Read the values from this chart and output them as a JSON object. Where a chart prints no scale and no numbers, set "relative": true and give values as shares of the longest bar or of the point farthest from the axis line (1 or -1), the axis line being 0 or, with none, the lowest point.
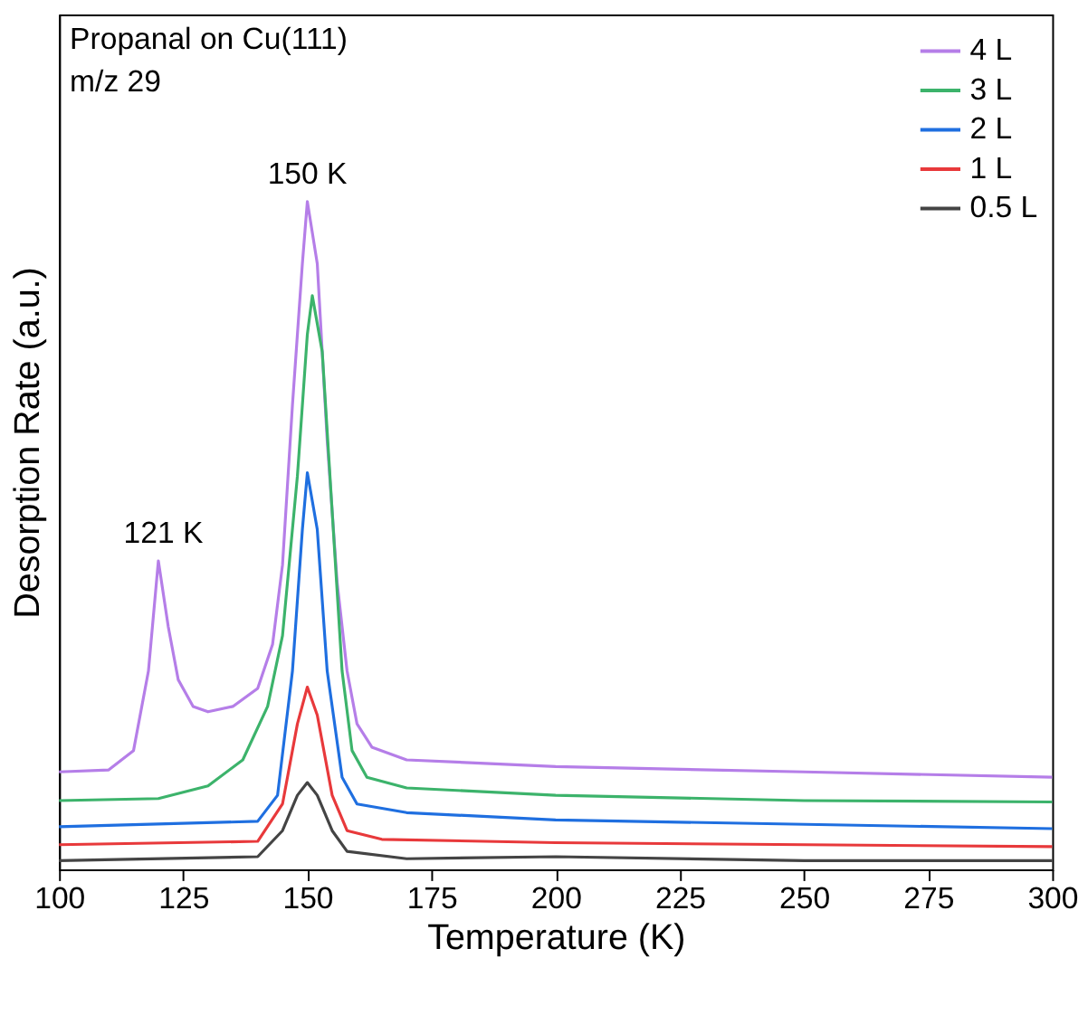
{
  "chart_data": {
    "type": "line",
    "xlabel": "Temperature (K)",
    "ylabel": "Desorption Rate (a.u.)",
    "relative": true,
    "tick_labels": "x",
    "legend": "top right",
    "grid": false,
    "line_style": "solid",
    "marker": "none",
    "xlim": [
      100,
      300
    ],
    "xticks": [
      100,
      125,
      150,
      175,
      200,
      225,
      250,
      275,
      300
    ],
    "annotations": [
      "Propanal on Cu(111)",
      "m/z 29",
      {
        "text": "121 K",
        "x": 121,
        "y": 0.462
      },
      {
        "text": "150 K",
        "x": 150,
        "y": 1.0
      }
    ],
    "series": [
      {
        "name": "4 L",
        "color": "#b57ee8",
        "x": [
          100,
          110,
          115,
          118,
          120,
          122,
          124,
          127,
          130,
          135,
          140,
          143,
          145,
          147,
          149,
          150,
          152,
          154,
          156,
          158,
          160,
          163,
          170,
          200,
          250,
          300
        ],
        "values": [
          0.146,
          0.149,
          0.178,
          0.297,
          0.462,
          0.363,
          0.284,
          0.244,
          0.236,
          0.244,
          0.271,
          0.337,
          0.456,
          0.695,
          0.907,
          1.0,
          0.907,
          0.642,
          0.43,
          0.297,
          0.218,
          0.183,
          0.164,
          0.154,
          0.146,
          0.138
        ]
      },
      {
        "name": "3 L",
        "color": "#3cb36b",
        "x": [
          100,
          120,
          130,
          137,
          142,
          145,
          148,
          150,
          151,
          153,
          155,
          157,
          159,
          162,
          170,
          200,
          250,
          300
        ],
        "values": [
          0.103,
          0.106,
          0.125,
          0.164,
          0.244,
          0.35,
          0.589,
          0.801,
          0.859,
          0.775,
          0.536,
          0.297,
          0.178,
          0.138,
          0.122,
          0.111,
          0.103,
          0.101
        ]
      },
      {
        "name": "2 L",
        "color": "#1f6fe0",
        "x": [
          100,
          140,
          144,
          147,
          149,
          150,
          152,
          154,
          157,
          160,
          170,
          200,
          300
        ],
        "values": [
          0.064,
          0.072,
          0.111,
          0.297,
          0.509,
          0.594,
          0.509,
          0.297,
          0.138,
          0.098,
          0.085,
          0.074,
          0.061
        ]
      },
      {
        "name": "1 L",
        "color": "#e8393b",
        "x": [
          100,
          140,
          145,
          148,
          150,
          152,
          155,
          158,
          165,
          200,
          300
        ],
        "values": [
          0.037,
          0.042,
          0.098,
          0.218,
          0.273,
          0.231,
          0.111,
          0.058,
          0.045,
          0.04,
          0.034
        ]
      },
      {
        "name": "0.5 L",
        "color": "#444444",
        "x": [
          100,
          140,
          145,
          148,
          150,
          152,
          155,
          158,
          170,
          200,
          250,
          300
        ],
        "values": [
          0.013,
          0.019,
          0.058,
          0.111,
          0.13,
          0.111,
          0.058,
          0.027,
          0.016,
          0.019,
          0.013,
          0.013
        ]
      }
    ]
  }
}
